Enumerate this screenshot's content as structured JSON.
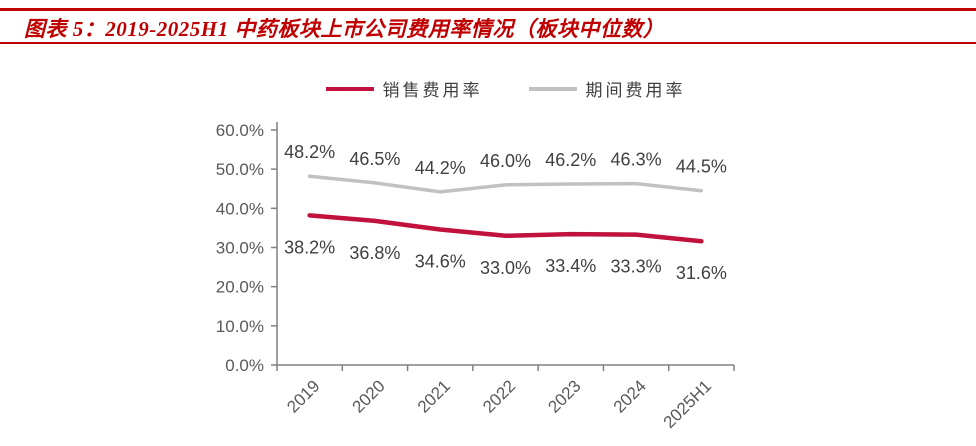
{
  "header": {
    "title": "图表 5：2019-2025H1 中药板块上市公司费用率情况（板块中位数）",
    "accent_color": "#C00000"
  },
  "chart_data": {
    "type": "line",
    "title": "",
    "categories": [
      "2019",
      "2020",
      "2021",
      "2022",
      "2023",
      "2024",
      "2025H1"
    ],
    "series": [
      {
        "name": "销售费用率",
        "color": "#C0123C",
        "values": [
          38.2,
          36.8,
          34.6,
          33.0,
          33.4,
          33.3,
          31.6
        ],
        "data_labels": [
          "38.2%",
          "36.8%",
          "34.6%",
          "33.0%",
          "33.4%",
          "33.3%",
          "31.6%"
        ],
        "label_position": "below"
      },
      {
        "name": "期间费用率",
        "color": "#C1C1C1",
        "values": [
          48.2,
          46.5,
          44.2,
          46.0,
          46.2,
          46.3,
          44.5
        ],
        "data_labels": [
          "48.2%",
          "46.5%",
          "44.2%",
          "46.0%",
          "46.2%",
          "46.3%",
          "44.5%"
        ],
        "label_position": "above"
      }
    ],
    "xlabel": "",
    "ylabel": "",
    "ylim": [
      0,
      60
    ],
    "ytick_step": 10,
    "ytick_labels": [
      "0.0%",
      "10.0%",
      "20.0%",
      "30.0%",
      "40.0%",
      "50.0%",
      "60.0%"
    ],
    "grid": false,
    "legend_position": "top",
    "axis_color": "#808080",
    "tick_label_color": "#595959",
    "data_label_color": "#404040"
  }
}
